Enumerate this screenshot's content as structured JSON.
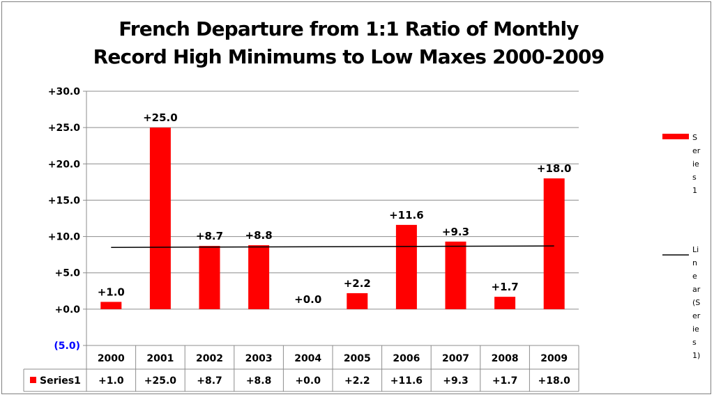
{
  "chart_data": {
    "type": "bar",
    "title_line1": "French Departure from 1:1 Ratio of Monthly",
    "title_line2": "Record High Minimums  to Low Maxes 2000-2009",
    "categories": [
      "2000",
      "2001",
      "2002",
      "2003",
      "2004",
      "2005",
      "2006",
      "2007",
      "2008",
      "2009"
    ],
    "series": [
      {
        "name": "Series1",
        "values": [
          1.0,
          25.0,
          8.7,
          8.8,
          0.0,
          2.2,
          11.6,
          9.3,
          1.7,
          18.0
        ],
        "labels": [
          "+1.0",
          "+25.0",
          "+8.7",
          "+8.8",
          "+0.0",
          "+2.2",
          "+11.6",
          "+9.3",
          "+1.7",
          "+18.0"
        ],
        "color": "#ff0000"
      }
    ],
    "trendline": {
      "name": "Linear (Series1)",
      "start": 8.5,
      "end": 8.7,
      "color": "#000000"
    },
    "ylim": [
      -5,
      30
    ],
    "yticks": [
      {
        "value": 30,
        "label": "+30.0",
        "color": "#000000"
      },
      {
        "value": 25,
        "label": "+25.0",
        "color": "#000000"
      },
      {
        "value": 20,
        "label": "+20.0",
        "color": "#000000"
      },
      {
        "value": 15,
        "label": "+15.0",
        "color": "#000000"
      },
      {
        "value": 10,
        "label": "+10.0",
        "color": "#000000"
      },
      {
        "value": 5,
        "label": "+5.0",
        "color": "#000000"
      },
      {
        "value": 0,
        "label": "+0.0",
        "color": "#000000"
      },
      {
        "value": -5,
        "label": "(5.0)",
        "color": "#0000ff"
      }
    ],
    "grid": true,
    "legend_position": "right",
    "data_table": true
  }
}
